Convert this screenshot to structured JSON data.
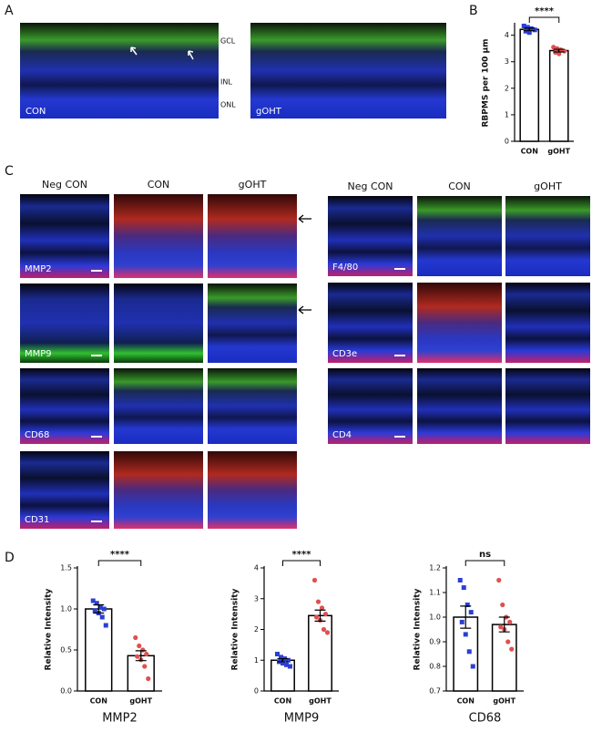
{
  "panel_labels": [
    "A",
    "B",
    "C",
    "D"
  ],
  "panel_a": {
    "images": [
      "CON",
      "gOHT"
    ],
    "layers": [
      "GCL",
      "INL",
      "ONL"
    ]
  },
  "panel_c": {
    "left": {
      "headers": [
        "Neg CON",
        "CON",
        "gOHT"
      ],
      "rows": [
        "MMP2",
        "MMP9",
        "CD68",
        "CD31"
      ]
    },
    "right": {
      "headers": [
        "Neg CON",
        "CON",
        "gOHT"
      ],
      "rows": [
        "F4/80",
        "CD3e",
        "CD4"
      ]
    }
  },
  "chart_data": [
    {
      "type": "bar",
      "ylabel": "RBPMS per 100 µm",
      "categories": [
        "CON",
        "gOHT"
      ],
      "values": [
        4.22,
        3.42
      ],
      "errors": [
        0.05,
        0.05
      ],
      "points": [
        [
          4.35,
          4.3,
          4.25,
          4.2,
          4.15,
          4.1
        ],
        [
          3.55,
          3.5,
          3.45,
          3.4,
          3.35,
          3.3
        ]
      ],
      "point_colors": [
        "#2b3fd6",
        "#e05050"
      ],
      "ylim": [
        0,
        4.4
      ],
      "yticks": [
        0,
        1,
        2,
        3,
        4
      ],
      "significance": "****"
    },
    {
      "type": "bar",
      "ylabel": "Relative Intensity",
      "categories": [
        "CON",
        "gOHT"
      ],
      "values": [
        1.0,
        0.43
      ],
      "errors": [
        0.05,
        0.06
      ],
      "points": [
        [
          1.1,
          1.07,
          1.02,
          1.0,
          0.98,
          0.95,
          0.9,
          0.8
        ],
        [
          0.65,
          0.55,
          0.5,
          0.45,
          0.42,
          0.38,
          0.3,
          0.15
        ]
      ],
      "point_colors": [
        "#2b3fd6",
        "#e05050"
      ],
      "ylim": [
        0,
        1.5
      ],
      "yticks": [
        {
          "value": 0,
          "label": "0.0"
        },
        0.5,
        {
          "value": 1,
          "label": "1.0"
        },
        1.5
      ],
      "significance": "****",
      "caption": "MMP2"
    },
    {
      "type": "bar",
      "ylabel": "Relative Intensity",
      "categories": [
        "CON",
        "gOHT"
      ],
      "values": [
        1.0,
        2.45
      ],
      "errors": [
        0.05,
        0.18
      ],
      "points": [
        [
          1.2,
          1.1,
          1.05,
          1.0,
          0.95,
          0.9,
          0.85,
          0.8
        ],
        [
          3.6,
          2.9,
          2.7,
          2.5,
          2.4,
          2.3,
          2.0,
          1.9
        ]
      ],
      "point_colors": [
        "#2b3fd6",
        "#e05050"
      ],
      "ylim": [
        0,
        4
      ],
      "yticks": [
        0,
        1,
        2,
        3,
        4
      ],
      "significance": "****",
      "caption": "MMP9"
    },
    {
      "type": "bar",
      "ylabel": "Relative Intensity",
      "categories": [
        "CON",
        "gOHT"
      ],
      "values": [
        1.0,
        0.97
      ],
      "errors": [
        0.045,
        0.03
      ],
      "points": [
        [
          1.15,
          1.12,
          1.05,
          1.02,
          0.98,
          0.93,
          0.86,
          0.8
        ],
        [
          1.15,
          1.05,
          1.0,
          0.98,
          0.96,
          0.95,
          0.9,
          0.87
        ]
      ],
      "point_colors": [
        "#2b3fd6",
        "#e05050"
      ],
      "ylim": [
        0.7,
        1.2
      ],
      "yticks": [
        0.7,
        0.8,
        0.9,
        {
          "value": 1,
          "label": "1.0"
        },
        1.1,
        1.2
      ],
      "significance": "ns",
      "caption": "CD68"
    }
  ]
}
